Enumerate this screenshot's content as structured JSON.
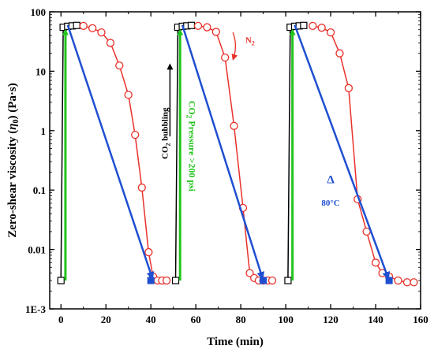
{
  "chart_data": {
    "type": "line",
    "xlabel": "Time (min)",
    "ylabel_parts": [
      "Zero-shear viscosity (",
      "η",
      "0",
      ") (Pa·s)"
    ],
    "xlim": [
      -5,
      160
    ],
    "ylim": [
      0.001,
      100
    ],
    "yscale": "log",
    "x_ticks": [
      0,
      20,
      40,
      60,
      80,
      100,
      120,
      140,
      160
    ],
    "y_ticks": [
      {
        "value": 0.001,
        "label": "1E-3"
      },
      {
        "value": 0.01,
        "label": "0.01"
      },
      {
        "value": 0.1,
        "label": "0.1"
      },
      {
        "value": 1,
        "label": "1"
      },
      {
        "value": 10,
        "label": "10"
      },
      {
        "value": 100,
        "label": "100"
      }
    ],
    "colors": {
      "red": "#e8312b",
      "green": "#22c41c",
      "blue": "#1f4fd1",
      "black": "#000000"
    },
    "series": [
      {
        "style": "black-open-squares",
        "segments": [
          [
            [
              0,
              0.003
            ],
            [
              1,
              55
            ],
            [
              3,
              57
            ],
            [
              5,
              58
            ],
            [
              7,
              59
            ]
          ],
          [
            [
              51,
              0.003
            ],
            [
              52,
              55
            ],
            [
              54,
              57
            ],
            [
              56,
              58
            ],
            [
              58,
              59
            ]
          ],
          [
            [
              101,
              0.003
            ],
            [
              102,
              55
            ],
            [
              104,
              57
            ],
            [
              106,
              58
            ],
            [
              108,
              59
            ]
          ]
        ]
      },
      {
        "style": "red-open-circles",
        "segments": [
          [
            [
              10,
              58
            ],
            [
              14,
              53
            ],
            [
              18,
              45
            ],
            [
              22,
              30
            ],
            [
              26,
              12.5
            ],
            [
              30,
              4
            ],
            [
              33,
              0.85
            ],
            [
              36,
              0.11
            ],
            [
              39,
              0.009
            ],
            [
              41,
              0.0035
            ],
            [
              43,
              0.003
            ],
            [
              45,
              0.003
            ],
            [
              47,
              0.003
            ]
          ],
          [
            [
              61,
              58
            ],
            [
              65,
              55
            ],
            [
              69,
              46
            ],
            [
              73,
              17
            ],
            [
              77,
              1.2
            ],
            [
              81,
              0.05
            ],
            [
              84,
              0.004
            ],
            [
              86,
              0.0033
            ],
            [
              88,
              0.003
            ],
            [
              90,
              0.003
            ],
            [
              92,
              0.003
            ],
            [
              94,
              0.003
            ]
          ],
          [
            [
              112,
              58
            ],
            [
              116,
              54
            ],
            [
              120,
              45
            ],
            [
              124,
              20
            ],
            [
              128,
              5.2
            ],
            [
              132,
              0.07
            ],
            [
              136,
              0.02
            ],
            [
              140,
              0.006
            ],
            [
              143,
              0.004
            ],
            [
              146,
              0.0035
            ],
            [
              150,
              0.003
            ],
            [
              154,
              0.0028
            ],
            [
              157,
              0.0028
            ]
          ]
        ]
      }
    ],
    "pressure_arrows": [
      {
        "from": [
          2,
          0.003
        ],
        "to": [
          2,
          55
        ]
      },
      {
        "from": [
          53,
          0.003
        ],
        "to": [
          53,
          55
        ]
      },
      {
        "from": [
          103,
          0.003
        ],
        "to": [
          103,
          55
        ]
      }
    ],
    "depressure_arrows": [
      {
        "from": [
          3,
          60
        ],
        "to": [
          41,
          0.003
        ]
      },
      {
        "from": [
          54,
          60
        ],
        "to": [
          90,
          0.003
        ]
      },
      {
        "from": [
          104,
          60
        ],
        "to": [
          146,
          0.003
        ]
      }
    ],
    "filled_squares": [
      [
        40,
        0.003
      ],
      [
        90,
        0.003
      ],
      [
        146,
        0.003
      ]
    ],
    "annotations": {
      "co2_bubbling": "CO",
      "co2_bubbling_sub": "2",
      "co2_bubbling_tail": " bubbling",
      "co2_pressure": "CO",
      "co2_pressure_sub": "2",
      "co2_pressure_tail": " Pressure >200 psi",
      "n2": "N",
      "n2_sub": "2",
      "delta": "Δ",
      "temp": "80°C"
    }
  }
}
